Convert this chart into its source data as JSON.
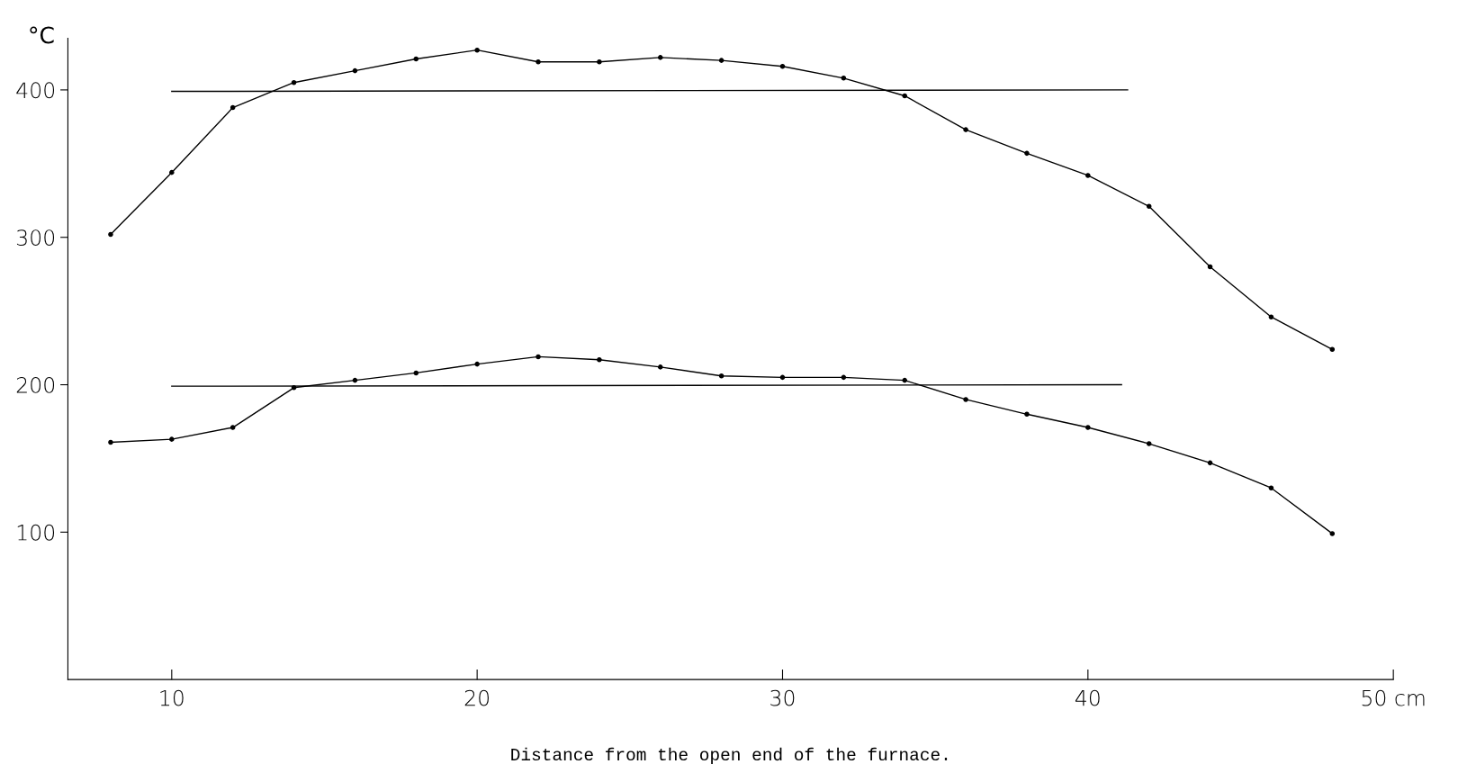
{
  "chart_data": {
    "type": "line",
    "ylabel": "°C",
    "xlabel": "Distance from the open end of the furnace.",
    "xlim": [
      6.6,
      50
    ],
    "ylim": [
      0,
      435
    ],
    "xticks": [
      10,
      20,
      30,
      40,
      {
        "value": 50,
        "label": "50 cm"
      }
    ],
    "yticks": [
      100,
      200,
      300,
      400
    ],
    "grid": false,
    "marker": "circle",
    "line_style": "solid",
    "series": [
      {
        "color": "#000000",
        "x": [
          8,
          10,
          12,
          14,
          16,
          18,
          20,
          22,
          24,
          26,
          28,
          30,
          32,
          34,
          36,
          38,
          40,
          42,
          44,
          46,
          48
        ],
        "values": [
          302,
          344,
          388,
          405,
          413,
          421,
          427,
          419,
          419,
          422,
          420,
          416,
          408,
          396,
          373,
          357,
          342,
          321,
          280,
          246,
          224
        ]
      },
      {
        "color": "#000000",
        "x": [
          8,
          10,
          12,
          14,
          16,
          18,
          20,
          22,
          24,
          26,
          28,
          30,
          32,
          34,
          36,
          38,
          40,
          42,
          44,
          46,
          48
        ],
        "values": [
          161,
          163,
          171,
          198,
          203,
          208,
          214,
          219,
          217,
          212,
          206,
          205,
          205,
          203,
          190,
          180,
          171,
          160,
          147,
          130,
          99
        ]
      },
      {
        "color": "#000000",
        "marker": "none",
        "x": [
          10,
          41.3
        ],
        "values": [
          399,
          400
        ]
      },
      {
        "color": "#000000",
        "marker": "none",
        "x": [
          10,
          41.1
        ],
        "values": [
          199,
          200
        ]
      }
    ]
  }
}
